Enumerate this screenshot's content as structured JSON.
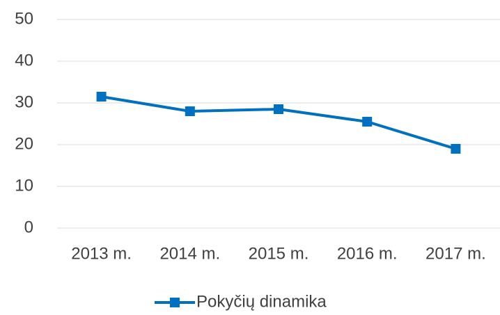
{
  "chart_data": {
    "type": "line",
    "categories": [
      "2013 m.",
      "2014 m.",
      "2015 m.",
      "2016 m.",
      "2017 m."
    ],
    "series": [
      {
        "name": "Pokyčių dinamika",
        "color": "#0070c0",
        "values": [
          31.5,
          28,
          28.5,
          25.5,
          19
        ]
      }
    ],
    "ylim": [
      0,
      50
    ],
    "yticks": [
      0,
      10,
      20,
      30,
      40,
      50
    ],
    "grid": true,
    "legend": "bottom"
  }
}
